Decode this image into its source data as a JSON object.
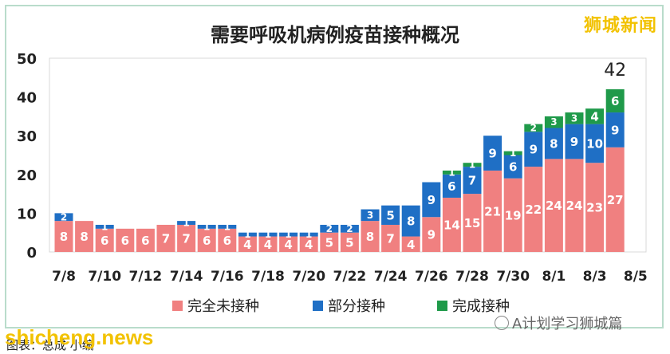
{
  "watermarks": {
    "top_right": "狮城新闻",
    "bottom_left": "shicheng.news",
    "bottom_right": "A计划学习狮城篇",
    "caption": "图表：总成 小编"
  },
  "chart_data": {
    "type": "bar",
    "stacked": true,
    "title": "需要呼吸机病例疫苗接种概况",
    "xlabel": "",
    "ylabel": "",
    "ylim": [
      0,
      50
    ],
    "yticks": [
      0,
      10,
      20,
      30,
      40,
      50
    ],
    "xtick_labels": [
      "7/8",
      "7/10",
      "7/12",
      "7/14",
      "7/16",
      "7/18",
      "7/20",
      "7/22",
      "7/24",
      "7/26",
      "7/28",
      "7/30",
      "8/1",
      "8/3",
      "8/5"
    ],
    "grid": false,
    "legend_position": "bottom",
    "categories": [
      "7/8",
      "7/9",
      "7/10",
      "7/11",
      "7/12",
      "7/13",
      "7/14",
      "7/15",
      "7/16",
      "7/17",
      "7/18",
      "7/19",
      "7/20",
      "7/21",
      "7/22",
      "7/23",
      "7/24",
      "7/25",
      "7/26",
      "7/27",
      "7/28",
      "7/29",
      "7/30",
      "7/31",
      "8/1",
      "8/2",
      "8/3",
      "8/4"
    ],
    "series": [
      {
        "name": "完全未接种",
        "color": "#f08080",
        "values": [
          8,
          8,
          6,
          6,
          6,
          7,
          7,
          6,
          6,
          4,
          4,
          4,
          4,
          5,
          5,
          8,
          7,
          4,
          9,
          14,
          15,
          21,
          19,
          22,
          24,
          24,
          23,
          27
        ]
      },
      {
        "name": "部分接种",
        "color": "#1f6fc5",
        "values": [
          2,
          0,
          1,
          0,
          0,
          0,
          1,
          1,
          1,
          1,
          1,
          1,
          1,
          2,
          2,
          3,
          5,
          8,
          9,
          6,
          7,
          9,
          6,
          9,
          8,
          9,
          10,
          9
        ]
      },
      {
        "name": "完成接种",
        "color": "#1f9a4a",
        "values": [
          0,
          0,
          0,
          0,
          0,
          0,
          0,
          0,
          0,
          0,
          0,
          0,
          0,
          0,
          0,
          0,
          0,
          0,
          0,
          1,
          1,
          0,
          1,
          2,
          3,
          3,
          4,
          6
        ]
      }
    ],
    "annotations": [
      {
        "category": "8/4",
        "text": "42"
      }
    ]
  }
}
